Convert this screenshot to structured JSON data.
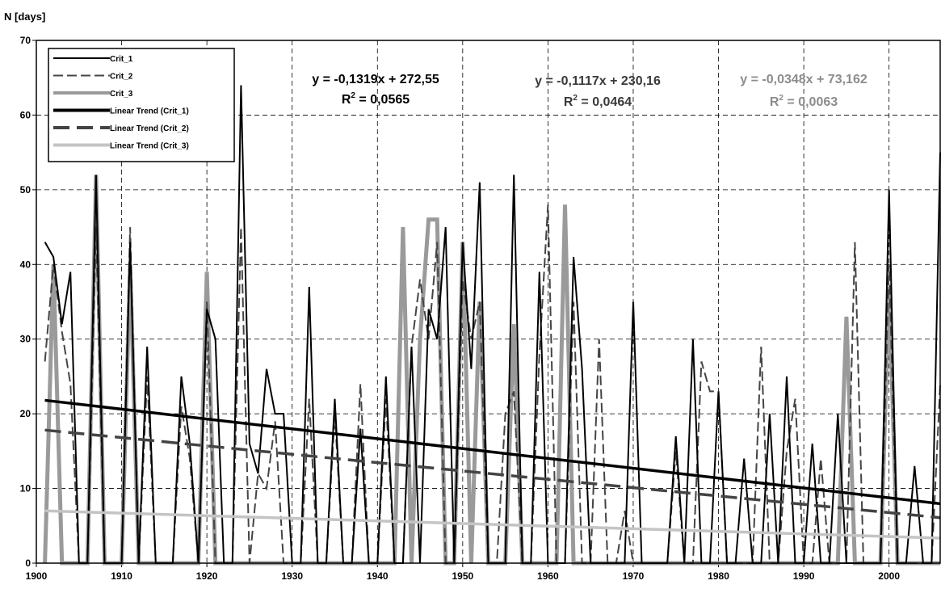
{
  "chart_data": {
    "type": "line",
    "ylabel": "N [days]",
    "xlabel": "",
    "xlim": [
      1900,
      2006
    ],
    "ylim": [
      0,
      70
    ],
    "x_ticks": [
      1900,
      1910,
      1920,
      1930,
      1940,
      1950,
      1960,
      1970,
      1980,
      1990,
      2000
    ],
    "y_ticks": [
      0,
      10,
      20,
      30,
      40,
      50,
      60,
      70
    ],
    "grid": true,
    "legend_position": "top-left",
    "x": [
      1901,
      1902,
      1903,
      1904,
      1905,
      1906,
      1907,
      1908,
      1909,
      1910,
      1911,
      1912,
      1913,
      1914,
      1915,
      1916,
      1917,
      1918,
      1919,
      1920,
      1921,
      1922,
      1923,
      1924,
      1925,
      1926,
      1927,
      1928,
      1929,
      1930,
      1931,
      1932,
      1933,
      1934,
      1935,
      1936,
      1937,
      1938,
      1939,
      1940,
      1941,
      1942,
      1943,
      1944,
      1945,
      1946,
      1947,
      1948,
      1949,
      1950,
      1951,
      1952,
      1953,
      1954,
      1955,
      1956,
      1957,
      1958,
      1959,
      1960,
      1961,
      1962,
      1963,
      1964,
      1965,
      1966,
      1967,
      1968,
      1969,
      1970,
      1971,
      1972,
      1973,
      1974,
      1975,
      1976,
      1977,
      1978,
      1979,
      1980,
      1981,
      1982,
      1983,
      1984,
      1985,
      1986,
      1987,
      1988,
      1989,
      1990,
      1991,
      1992,
      1993,
      1994,
      1995,
      1996,
      1997,
      1998,
      1999,
      2000,
      2001,
      2002,
      2003,
      2004,
      2005,
      2006
    ],
    "series": [
      {
        "name": "Crit_1",
        "color": "#000000",
        "dash": "",
        "width": 2,
        "values": [
          43,
          41,
          32,
          39,
          0,
          0,
          52,
          0,
          0,
          0,
          43,
          0,
          29,
          0,
          0,
          0,
          25,
          16,
          0,
          34,
          30,
          0,
          0,
          64,
          16,
          12,
          26,
          20,
          20,
          0,
          0,
          37,
          0,
          0,
          22,
          0,
          0,
          18,
          0,
          0,
          25,
          0,
          0,
          29,
          0,
          34,
          30,
          45,
          0,
          43,
          26,
          51,
          0,
          0,
          0,
          52,
          0,
          0,
          39,
          0,
          0,
          0,
          41,
          26,
          0,
          0,
          0,
          0,
          0,
          35,
          0,
          0,
          0,
          0,
          17,
          0,
          30,
          0,
          0,
          23,
          0,
          0,
          14,
          0,
          0,
          20,
          0,
          25,
          0,
          0,
          16,
          0,
          0,
          20,
          0,
          0,
          0,
          0,
          0,
          50,
          0,
          0,
          13,
          0,
          0,
          55
        ]
      },
      {
        "name": "Crit_2",
        "color": "#444444",
        "dash": "12,5",
        "width": 2,
        "values": [
          27,
          40,
          31,
          24,
          0,
          0,
          45,
          0,
          0,
          0,
          45,
          0,
          25,
          0,
          0,
          0,
          21,
          14,
          0,
          35,
          0,
          0,
          0,
          45,
          0,
          12,
          10,
          19,
          0,
          0,
          0,
          22,
          0,
          0,
          20,
          0,
          0,
          24,
          0,
          0,
          22,
          0,
          0,
          29,
          38,
          30,
          43,
          0,
          0,
          38,
          30,
          35,
          0,
          0,
          20,
          23,
          0,
          0,
          28,
          48,
          0,
          0,
          35,
          0,
          0,
          30,
          0,
          0,
          7,
          0,
          0,
          0,
          0,
          0,
          15,
          0,
          0,
          27,
          23,
          23,
          0,
          0,
          0,
          0,
          29,
          0,
          0,
          15,
          22,
          0,
          0,
          14,
          0,
          0,
          0,
          43,
          0,
          0,
          0,
          40,
          0,
          0,
          0,
          0,
          0,
          24
        ]
      },
      {
        "name": "Crit_3",
        "color": "#9a9a9a",
        "dash": "",
        "width": 5,
        "values": [
          0,
          40,
          0,
          0,
          0,
          0,
          52,
          0,
          0,
          0,
          40,
          0,
          0,
          0,
          0,
          0,
          0,
          0,
          0,
          39,
          0,
          0,
          0,
          0,
          0,
          0,
          0,
          0,
          0,
          0,
          0,
          0,
          0,
          0,
          0,
          0,
          0,
          0,
          0,
          0,
          0,
          0,
          45,
          0,
          30,
          46,
          46,
          0,
          0,
          43,
          0,
          35,
          0,
          0,
          0,
          32,
          0,
          0,
          0,
          0,
          0,
          48,
          0,
          0,
          0,
          0,
          0,
          0,
          0,
          0,
          0,
          0,
          0,
          0,
          0,
          0,
          0,
          0,
          0,
          0,
          0,
          0,
          0,
          0,
          0,
          0,
          0,
          0,
          0,
          0,
          0,
          0,
          0,
          0,
          33,
          0,
          0,
          0,
          0,
          37,
          0,
          0,
          0,
          0,
          0,
          0
        ]
      }
    ],
    "trendlines": [
      {
        "name": "Linear Trend (Crit_1)",
        "color": "#000000",
        "dash": "",
        "width": 3.5,
        "slope": -0.1319,
        "intercept": 272.55,
        "equation": "y = -0,1319x + 272,55",
        "r2_prefix": "R",
        "r2_exp": "2",
        "r2_value": " = 0,0565",
        "label_color": "#000000"
      },
      {
        "name": "Linear Trend (Crit_2)",
        "color": "#444444",
        "dash": "20,9",
        "width": 3.5,
        "slope": -0.1117,
        "intercept": 230.16,
        "equation": "y = -0,1117x + 230,16",
        "r2_prefix": "R",
        "r2_exp": "2",
        "r2_value": " = 0,0464",
        "label_color": "#3a3a3a"
      },
      {
        "name": "Linear Trend (Crit_3)",
        "color": "#c4c4c4",
        "dash": "",
        "width": 3.5,
        "slope": -0.0348,
        "intercept": 73.162,
        "equation": "y = -0,0348x + 73,162",
        "r2_prefix": "R",
        "r2_exp": "2",
        "r2_value": " = 0,0063",
        "label_color": "#8c8c8c"
      }
    ]
  }
}
